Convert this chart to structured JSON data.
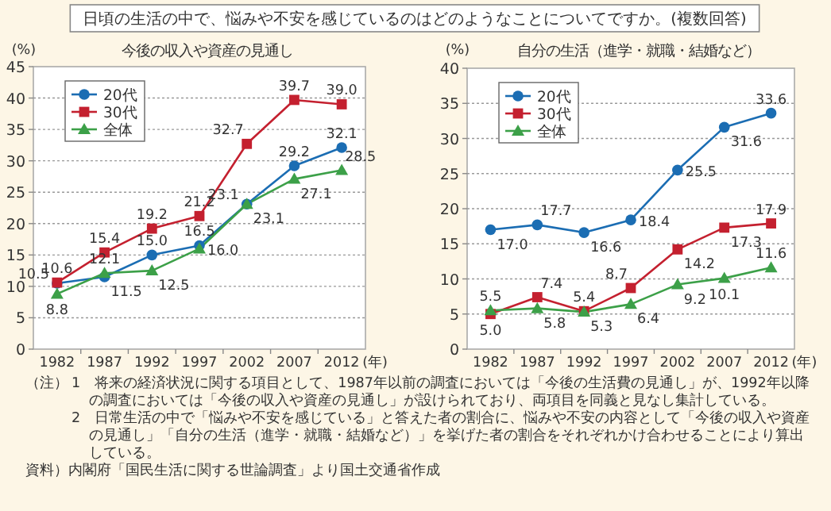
{
  "chart_data": [
    {
      "type": "line",
      "title": "日頃の生活の中で、悩みや不安を感じているのはどのようなことについてですか。(複数回答)",
      "subtitle": "今後の収入や資産の見通し",
      "xlabel": "(年)",
      "ylabel": "(%)",
      "categories": [
        "1982",
        "1987",
        "1992",
        "1997",
        "2002",
        "2007",
        "2012"
      ],
      "series": [
        {
          "name": "20代",
          "color": "#1b6db3",
          "marker": "circle",
          "values": [
            10.5,
            11.5,
            15.0,
            16.5,
            23.1,
            29.2,
            32.1
          ],
          "value_labels": [
            "10.5",
            "11.5",
            "15.0",
            "16.5",
            "23.1",
            "29.2",
            "32.1"
          ]
        },
        {
          "name": "30代",
          "color": "#c4202f",
          "marker": "square",
          "values": [
            10.6,
            15.4,
            19.2,
            21.2,
            32.7,
            39.7,
            39.0
          ],
          "value_labels": [
            "10.6",
            "15.4",
            "19.2",
            "21.2",
            "32.7",
            "39.7",
            "39.0"
          ]
        },
        {
          "name": "全体",
          "color": "#3ca048",
          "marker": "triangle",
          "values": [
            8.8,
            12.1,
            12.5,
            16.0,
            23.1,
            27.1,
            28.5
          ],
          "value_labels": [
            "8.8",
            "12.1",
            "12.5",
            "16.0",
            "23.1",
            "27.1",
            "28.5"
          ]
        }
      ],
      "ylim": [
        0,
        45
      ],
      "yticks": [
        0,
        5,
        10,
        15,
        20,
        25,
        30,
        35,
        40,
        45
      ],
      "grid": "y",
      "legend": "top left"
    },
    {
      "type": "line",
      "title": "自分の生活（進学・就職・結婚など）",
      "xlabel": "(年)",
      "ylabel": "(%)",
      "categories": [
        "1982",
        "1987",
        "1992",
        "1997",
        "2002",
        "2007",
        "2012"
      ],
      "series": [
        {
          "name": "20代",
          "color": "#1b6db3",
          "marker": "circle",
          "values": [
            17.0,
            17.7,
            16.6,
            18.4,
            25.5,
            31.6,
            33.6
          ],
          "value_labels": [
            "17.0",
            "17.7",
            "16.6",
            "18.4",
            "25.5",
            "31.6",
            "33.6"
          ]
        },
        {
          "name": "30代",
          "color": "#c4202f",
          "marker": "square",
          "values": [
            5.0,
            7.4,
            5.4,
            8.7,
            14.2,
            17.3,
            17.9
          ],
          "value_labels": [
            "5.0",
            "7.4",
            "5.4",
            "8.7",
            "14.2",
            "17.3",
            "17.9"
          ]
        },
        {
          "name": "全体",
          "color": "#3ca048",
          "marker": "triangle",
          "values": [
            5.5,
            5.8,
            5.3,
            6.4,
            9.2,
            10.1,
            11.6
          ],
          "value_labels": [
            "5.5",
            "5.8",
            "5.3",
            "6.4",
            "9.2",
            "10.1",
            "11.6"
          ]
        }
      ],
      "ylim": [
        0,
        40
      ],
      "yticks": [
        0,
        5,
        10,
        15,
        20,
        25,
        30,
        35,
        40
      ],
      "grid": "y",
      "legend": "top left",
      "annotations": [
        "（注）",
        "1　将来の経済状況に関する項目として、1987年以前の調査においては「今後の生活費の見通し」が、1992年以降の調査においては「今後の収入や資産の見通し」が設けられており、両項目を同義と見なし集計している。",
        "2　日常生活の中で「悩みや不安を感じている」と答えた者の割合に、悩みや不安の内容として「今後の収入や資産の見通し」「自分の生活（進学・就職・結婚など）」を挙げた者の割合をそれぞれかけ合わせることにより算出している。",
        "資料）内閣府「国民生活に関する世論調査」より国土交通省作成"
      ]
    }
  ]
}
